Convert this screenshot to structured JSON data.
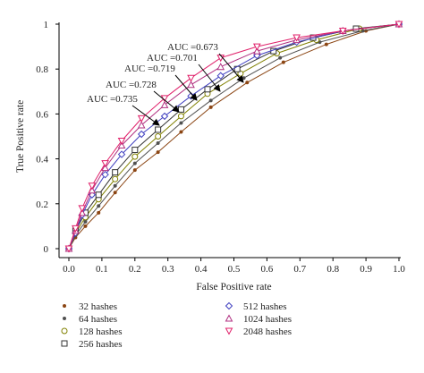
{
  "chart_data": {
    "type": "line",
    "title": "",
    "xlabel": "False Positive rate",
    "ylabel": "True Positive rate",
    "xlim": [
      0,
      1
    ],
    "ylim": [
      0,
      1
    ],
    "x_ticks": [
      "0.0",
      "0.1",
      "0.2",
      "0.3",
      "0.4",
      "0.5",
      "0.6",
      "0.7",
      "0.8",
      "0.9",
      "1.0"
    ],
    "y_ticks": [
      "0",
      "0.2",
      "0.4",
      "0.6",
      "0.8",
      "1"
    ],
    "grid": false,
    "legend_position": "bottom",
    "annotations": [
      "AUC =0.673",
      "AUC =0.701",
      "AUC =0.719",
      "AUC =0.728",
      "AUC =0.735"
    ],
    "series": [
      {
        "name": "32 hashes",
        "color": "#8b4513",
        "marker": "dot",
        "x": [
          0,
          0.02,
          0.05,
          0.09,
          0.14,
          0.2,
          0.27,
          0.34,
          0.43,
          0.54,
          0.65,
          0.78,
          0.9,
          1.0
        ],
        "y": [
          0,
          0.05,
          0.1,
          0.16,
          0.25,
          0.35,
          0.43,
          0.52,
          0.63,
          0.74,
          0.83,
          0.91,
          0.97,
          1.0
        ]
      },
      {
        "name": "64 hashes",
        "color": "#505050",
        "marker": "dot",
        "x": [
          0,
          0.02,
          0.05,
          0.09,
          0.14,
          0.2,
          0.27,
          0.34,
          0.43,
          0.53,
          0.64,
          0.76,
          0.89,
          1.0
        ],
        "y": [
          0,
          0.06,
          0.12,
          0.19,
          0.28,
          0.38,
          0.47,
          0.56,
          0.66,
          0.76,
          0.85,
          0.92,
          0.97,
          1.0
        ]
      },
      {
        "name": "128 hashes",
        "color": "#808000",
        "marker": "circle",
        "x": [
          0,
          0.02,
          0.05,
          0.09,
          0.14,
          0.2,
          0.27,
          0.34,
          0.42,
          0.52,
          0.63,
          0.75,
          0.88,
          1.0
        ],
        "y": [
          0,
          0.07,
          0.14,
          0.22,
          0.31,
          0.41,
          0.5,
          0.59,
          0.69,
          0.78,
          0.87,
          0.93,
          0.98,
          1.0
        ]
      },
      {
        "name": "256 hashes",
        "color": "#333333",
        "marker": "square",
        "x": [
          0,
          0.02,
          0.05,
          0.09,
          0.14,
          0.2,
          0.27,
          0.34,
          0.42,
          0.51,
          0.62,
          0.74,
          0.87,
          1.0
        ],
        "y": [
          0,
          0.08,
          0.16,
          0.24,
          0.34,
          0.44,
          0.53,
          0.62,
          0.71,
          0.8,
          0.88,
          0.94,
          0.98,
          1.0
        ]
      },
      {
        "name": "512 hashes",
        "color": "#4040c0",
        "marker": "diamond",
        "x": [
          0,
          0.02,
          0.04,
          0.07,
          0.11,
          0.16,
          0.22,
          0.29,
          0.37,
          0.46,
          0.57,
          0.69,
          0.83,
          1.0
        ],
        "y": [
          0,
          0.07,
          0.15,
          0.24,
          0.33,
          0.42,
          0.51,
          0.59,
          0.68,
          0.77,
          0.86,
          0.92,
          0.97,
          1.0
        ]
      },
      {
        "name": "1024 hashes",
        "color": "#b03080",
        "marker": "triangle-up",
        "x": [
          0,
          0.02,
          0.04,
          0.07,
          0.11,
          0.16,
          0.22,
          0.29,
          0.37,
          0.46,
          0.57,
          0.69,
          0.83,
          1.0
        ],
        "y": [
          0,
          0.08,
          0.16,
          0.26,
          0.36,
          0.46,
          0.55,
          0.64,
          0.73,
          0.81,
          0.88,
          0.93,
          0.97,
          1.0
        ]
      },
      {
        "name": "2048 hashes",
        "color": "#e0206a",
        "marker": "triangle-down",
        "x": [
          0,
          0.02,
          0.04,
          0.07,
          0.11,
          0.16,
          0.22,
          0.29,
          0.37,
          0.46,
          0.57,
          0.69,
          0.83,
          1.0
        ],
        "y": [
          0,
          0.09,
          0.18,
          0.28,
          0.38,
          0.48,
          0.58,
          0.67,
          0.76,
          0.85,
          0.9,
          0.94,
          0.97,
          1.0
        ]
      }
    ]
  }
}
